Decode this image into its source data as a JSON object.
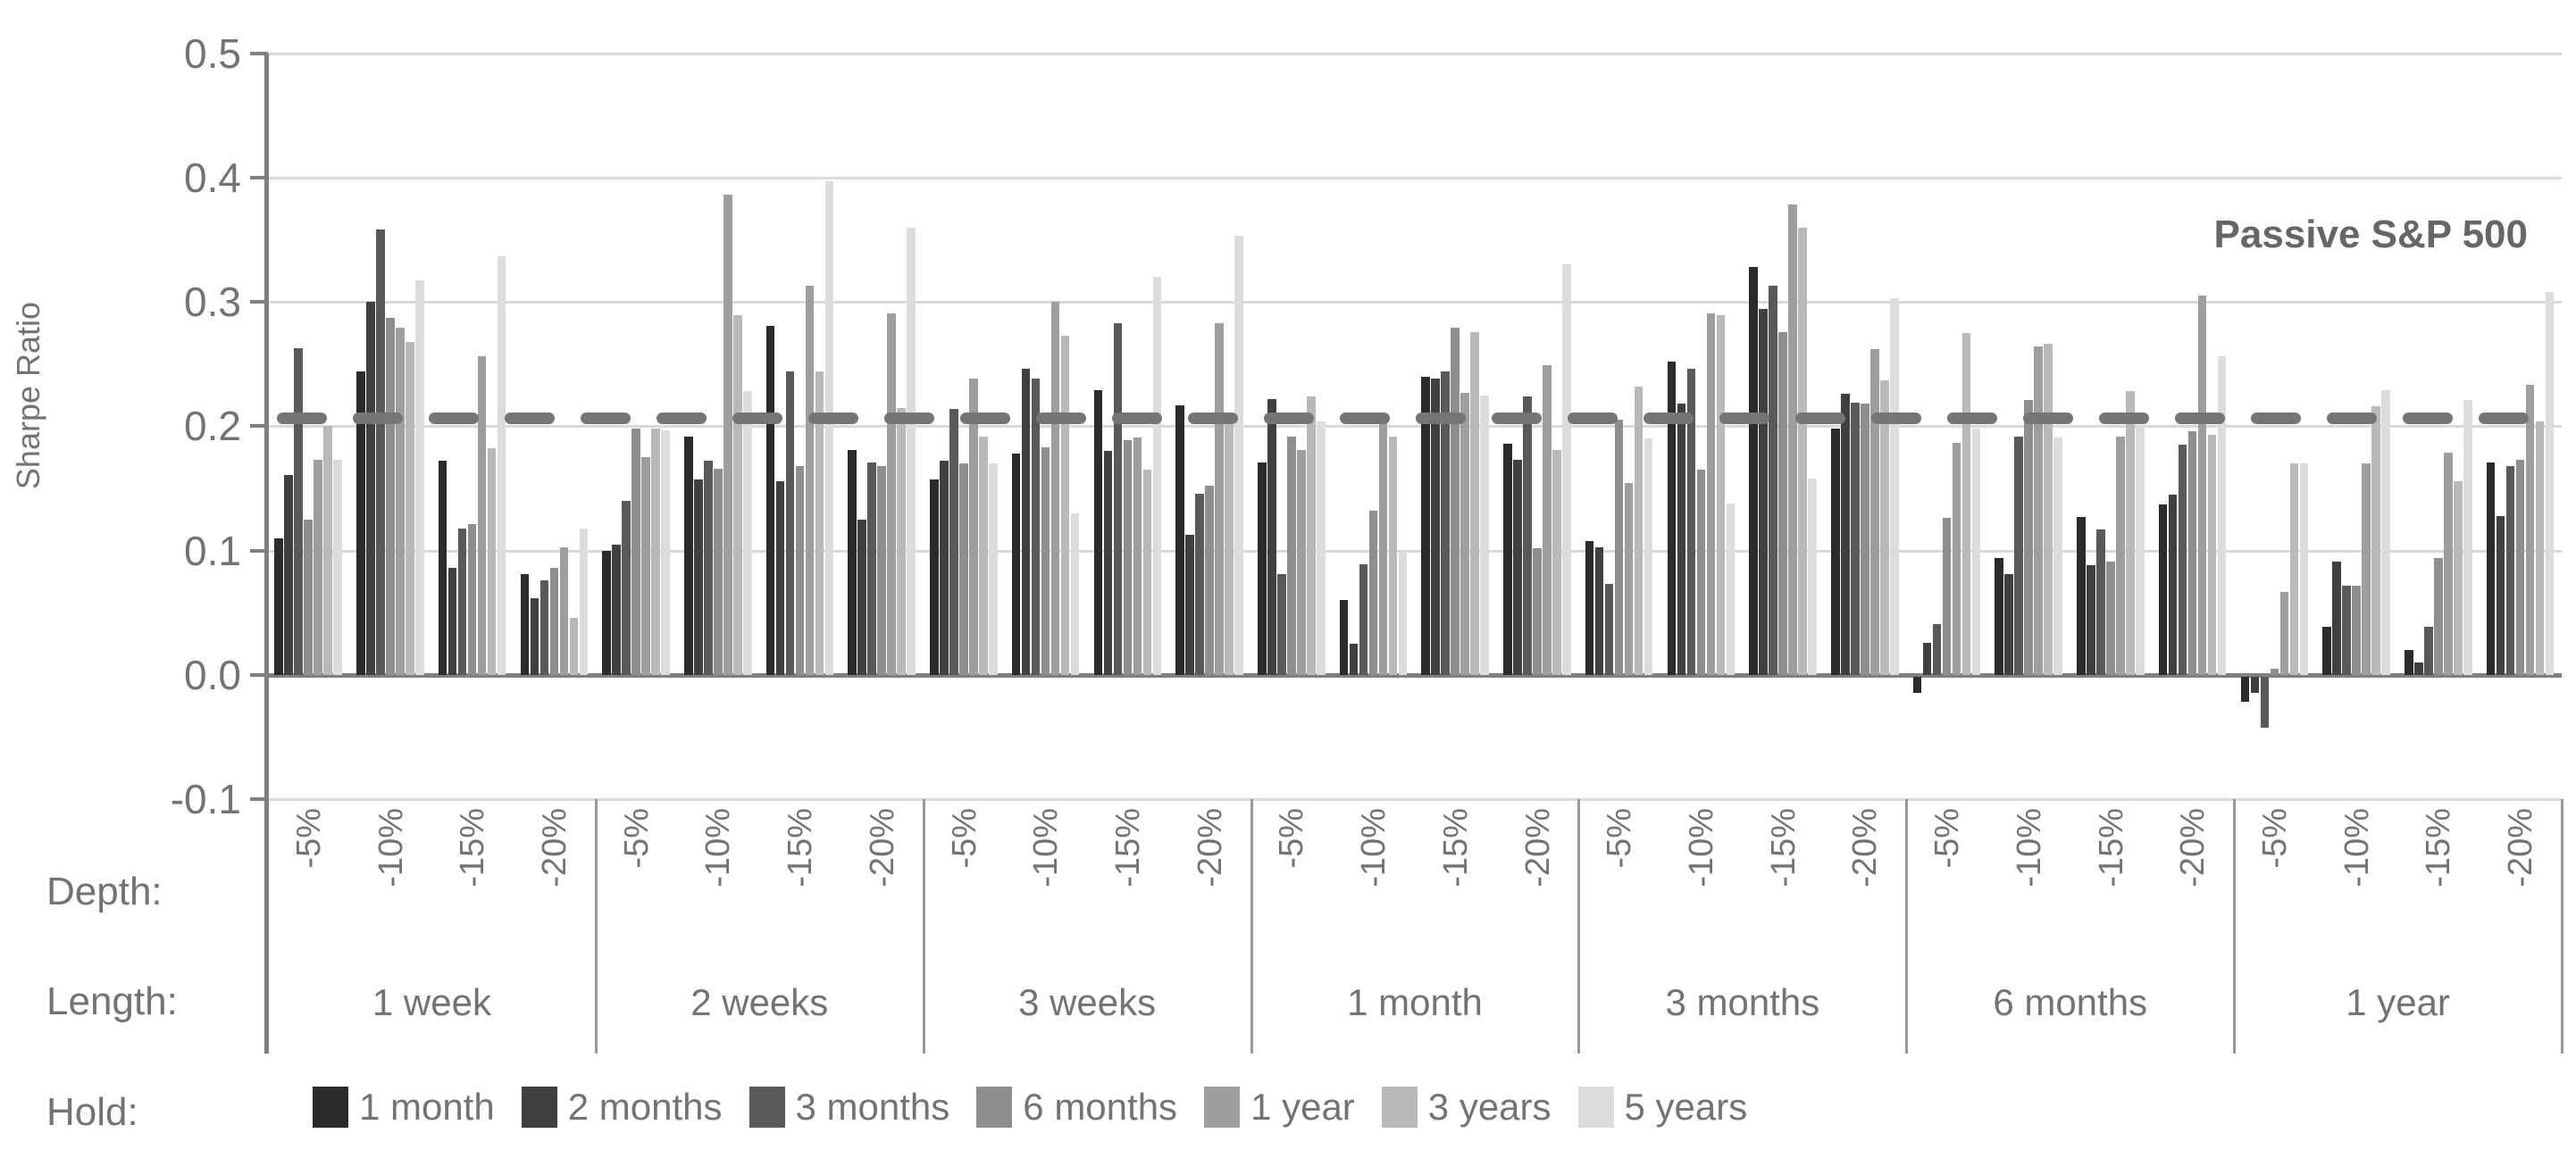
{
  "chart_data": {
    "type": "bar",
    "ylabel": "Sharpe Ratio",
    "ylim": [
      -0.1,
      0.5
    ],
    "grid": true,
    "y_ticks": [
      0.5,
      0.4,
      0.3,
      0.2,
      0.1,
      0.0,
      -0.1
    ],
    "y_tick_labels": [
      "0.5",
      "0.4",
      "0.3",
      "0.2",
      "0.1",
      "0.0",
      "-0.1"
    ],
    "annotation": {
      "label": "Passive S&P 500",
      "value": 0.207,
      "line_style": "dashed",
      "line_color": "#757575"
    },
    "axis_row_labels": {
      "depth": "Depth:",
      "length": "Length:",
      "hold": "Hold:"
    },
    "depth_categories": [
      "-5%",
      "-10%",
      "-15%",
      "-20%"
    ],
    "hold_series": [
      {
        "name": "1 month",
        "color": "#2b2b2b"
      },
      {
        "name": "2 months",
        "color": "#404040"
      },
      {
        "name": "3 months",
        "color": "#595959"
      },
      {
        "name": "6 months",
        "color": "#8e8e8e"
      },
      {
        "name": "1 year",
        "color": "#9e9e9e"
      },
      {
        "name": "3 years",
        "color": "#b9b9b9"
      },
      {
        "name": "5 years",
        "color": "#dcdcdc"
      }
    ],
    "groups": [
      {
        "length": "1 week",
        "values": [
          [
            0.11,
            0.161,
            0.263,
            0.125,
            0.173,
            0.2,
            0.173
          ],
          [
            0.244,
            0.3,
            0.358,
            0.287,
            0.279,
            0.268,
            0.317
          ],
          [
            0.172,
            0.086,
            0.118,
            0.121,
            0.256,
            0.182,
            0.337
          ],
          [
            0.081,
            0.062,
            0.076,
            0.086,
            0.103,
            0.046,
            0.118
          ]
        ]
      },
      {
        "length": "2 weeks",
        "values": [
          [
            0.1,
            0.105,
            0.14,
            0.198,
            0.175,
            0.198,
            0.197
          ],
          [
            0.192,
            0.157,
            0.172,
            0.166,
            0.386,
            0.289,
            0.228
          ],
          [
            0.281,
            0.156,
            0.244,
            0.168,
            0.313,
            0.244,
            0.397
          ],
          [
            0.181,
            0.125,
            0.171,
            0.168,
            0.291,
            0.215,
            0.36
          ]
        ]
      },
      {
        "length": "3 weeks",
        "values": [
          [
            0.157,
            0.172,
            0.214,
            0.17,
            0.238,
            0.192,
            0.17
          ],
          [
            0.178,
            0.246,
            0.238,
            0.183,
            0.3,
            0.273,
            0.13
          ],
          [
            0.229,
            0.18,
            0.283,
            0.189,
            0.191,
            0.165,
            0.32
          ],
          [
            0.217,
            0.113,
            0.146,
            0.152,
            0.283,
            0.205,
            0.353
          ]
        ]
      },
      {
        "length": "1 month",
        "values": [
          [
            0.171,
            0.222,
            0.081,
            0.192,
            0.181,
            0.224,
            0.204
          ],
          [
            0.06,
            0.025,
            0.089,
            0.132,
            0.205,
            0.192,
            0.1
          ],
          [
            0.24,
            0.238,
            0.244,
            0.279,
            0.227,
            0.276,
            0.225
          ],
          [
            0.186,
            0.173,
            0.224,
            0.102,
            0.249,
            0.181,
            0.33
          ]
        ]
      },
      {
        "length": "3 months",
        "values": [
          [
            0.108,
            0.103,
            0.073,
            0.205,
            0.154,
            0.232,
            0.19
          ],
          [
            0.252,
            0.218,
            0.246,
            0.165,
            0.291,
            0.289,
            0.138
          ],
          [
            0.328,
            0.294,
            0.313,
            0.276,
            0.378,
            0.36,
            0.158
          ],
          [
            0.198,
            0.226,
            0.219,
            0.218,
            0.262,
            0.237,
            0.303
          ]
        ]
      },
      {
        "length": "6 months",
        "values": [
          [
            -0.013,
            0.026,
            0.041,
            0.126,
            0.187,
            0.275,
            0.198
          ],
          [
            0.094,
            0.081,
            0.192,
            0.221,
            0.264,
            0.266,
            0.191
          ],
          [
            0.127,
            0.088,
            0.117,
            0.091,
            0.192,
            0.228,
            0.199
          ],
          [
            0.137,
            0.145,
            0.185,
            0.196,
            0.305,
            0.193,
            0.256
          ]
        ]
      },
      {
        "length": "1 year",
        "values": [
          [
            -0.02,
            -0.013,
            -0.041,
            0.005,
            0.067,
            0.17,
            0.17
          ],
          [
            0.039,
            0.091,
            0.072,
            0.072,
            0.17,
            0.216,
            0.229
          ],
          [
            0.02,
            0.01,
            0.039,
            0.094,
            0.179,
            0.156,
            0.221
          ],
          [
            0.171,
            0.128,
            0.168,
            0.173,
            0.233,
            0.204,
            0.308
          ]
        ]
      }
    ],
    "colors": {
      "gridline": "#d9d9d9",
      "axis": "#7f7f7f",
      "axis_text": "#737373",
      "separator": "#9a9a9a",
      "dash_line": "#757575",
      "annotation_text": "#666666"
    }
  }
}
